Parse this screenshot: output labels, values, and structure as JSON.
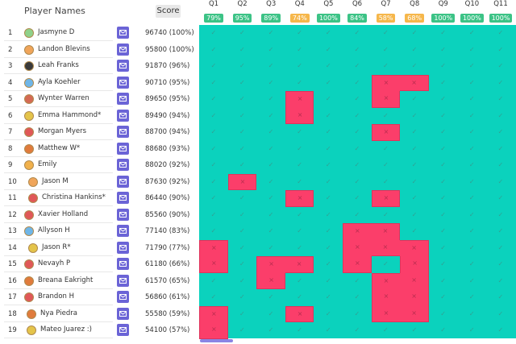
{
  "header": {
    "names_label": "Player Names",
    "score_label": "Score"
  },
  "questions": [
    {
      "label": "Q1",
      "pct": "79%",
      "color": "#3cc386"
    },
    {
      "label": "Q2",
      "pct": "95%",
      "color": "#3cc386"
    },
    {
      "label": "Q3",
      "pct": "89%",
      "color": "#3cc386"
    },
    {
      "label": "Q4",
      "pct": "74%",
      "color": "#f6b74b"
    },
    {
      "label": "Q5",
      "pct": "100%",
      "color": "#3cc386"
    },
    {
      "label": "Q6",
      "pct": "84%",
      "color": "#3cc386"
    },
    {
      "label": "Q7",
      "pct": "58%",
      "color": "#f6b74b"
    },
    {
      "label": "Q8",
      "pct": "68%",
      "color": "#f6b74b"
    },
    {
      "label": "Q9",
      "pct": "100%",
      "color": "#3cc386"
    },
    {
      "label": "Q10",
      "pct": "100%",
      "color": "#3cc386"
    },
    {
      "label": "Q11",
      "pct": "100%",
      "color": "#3cc386"
    }
  ],
  "players": [
    {
      "n": "1",
      "name": "Jasmyne D",
      "score": "96740 (100%)",
      "avatar": "#8fd18a"
    },
    {
      "n": "2",
      "name": "Landon Blevins",
      "score": "95800 (100%)",
      "avatar": "#f0a55a"
    },
    {
      "n": "3",
      "name": "Leah Franks",
      "score": "91870 (96%)",
      "avatar": "#3a3a3a"
    },
    {
      "n": "4",
      "name": "Ayla Koehler",
      "score": "90710 (95%)",
      "avatar": "#6fb6e8"
    },
    {
      "n": "5",
      "name": "Wynter Warren",
      "score": "89650 (95%)",
      "avatar": "#d46a54"
    },
    {
      "n": "6",
      "name": "Emma Hammond*",
      "score": "89490 (94%)",
      "avatar": "#e4c44a"
    },
    {
      "n": "7",
      "name": "Morgan Myers",
      "score": "88700 (94%)",
      "avatar": "#e05858"
    },
    {
      "n": "8",
      "name": "Matthew W*",
      "score": "88680 (93%)",
      "avatar": "#e07b3c"
    },
    {
      "n": "9",
      "name": "Emily",
      "score": "88020 (92%)",
      "avatar": "#f1b14c"
    },
    {
      "n": "10",
      "name": "Jason M",
      "score": "87630 (92%)",
      "avatar": "#f0a55a"
    },
    {
      "n": "11",
      "name": "Christina Hankins*",
      "score": "86440 (90%)",
      "avatar": "#e05858"
    },
    {
      "n": "12",
      "name": "Xavier Holland",
      "score": "85560 (90%)",
      "avatar": "#e05858"
    },
    {
      "n": "13",
      "name": "Allyson H",
      "score": "77140 (83%)",
      "avatar": "#6fb6e8"
    },
    {
      "n": "14",
      "name": "Jason R*",
      "score": "71790 (77%)",
      "avatar": "#e4c44a"
    },
    {
      "n": "15",
      "name": "Nevayh P",
      "score": "61180 (66%)",
      "avatar": "#e05858"
    },
    {
      "n": "16",
      "name": "Breana Eakright",
      "score": "61570 (65%)",
      "avatar": "#e07b3c"
    },
    {
      "n": "17",
      "name": "Brandon H",
      "score": "56860 (61%)",
      "avatar": "#e05858"
    },
    {
      "n": "18",
      "name": "Nya Piedra",
      "score": "55580 (59%)",
      "avatar": "#e07b3c"
    },
    {
      "n": "19",
      "name": "Mateo Juarez :)",
      "score": "54100 (57%)",
      "avatar": "#e4c44a"
    }
  ],
  "wrong_answers": [
    [
      3,
      6
    ],
    [
      3,
      7
    ],
    [
      4,
      3
    ],
    [
      4,
      6
    ],
    [
      5,
      3
    ],
    [
      6,
      6
    ],
    [
      9,
      1
    ],
    [
      10,
      3
    ],
    [
      10,
      6
    ],
    [
      12,
      5
    ],
    [
      12,
      6
    ],
    [
      13,
      0
    ],
    [
      13,
      5
    ],
    [
      13,
      6
    ],
    [
      13,
      7
    ],
    [
      14,
      0
    ],
    [
      14,
      2
    ],
    [
      14,
      3
    ],
    [
      14,
      5
    ],
    [
      14,
      7
    ],
    [
      15,
      2
    ],
    [
      15,
      6
    ],
    [
      15,
      7
    ],
    [
      16,
      6
    ],
    [
      16,
      7
    ],
    [
      17,
      0
    ],
    [
      17,
      3
    ],
    [
      17,
      6
    ],
    [
      17,
      7
    ],
    [
      18,
      0
    ]
  ],
  "colors": {
    "correct": "#0bd2bd",
    "wrong": "#fb3e6a",
    "mail_button": "#6b64d6"
  },
  "icons": {
    "mail": "envelope-icon",
    "correct": "check-icon",
    "wrong": "x-icon"
  }
}
